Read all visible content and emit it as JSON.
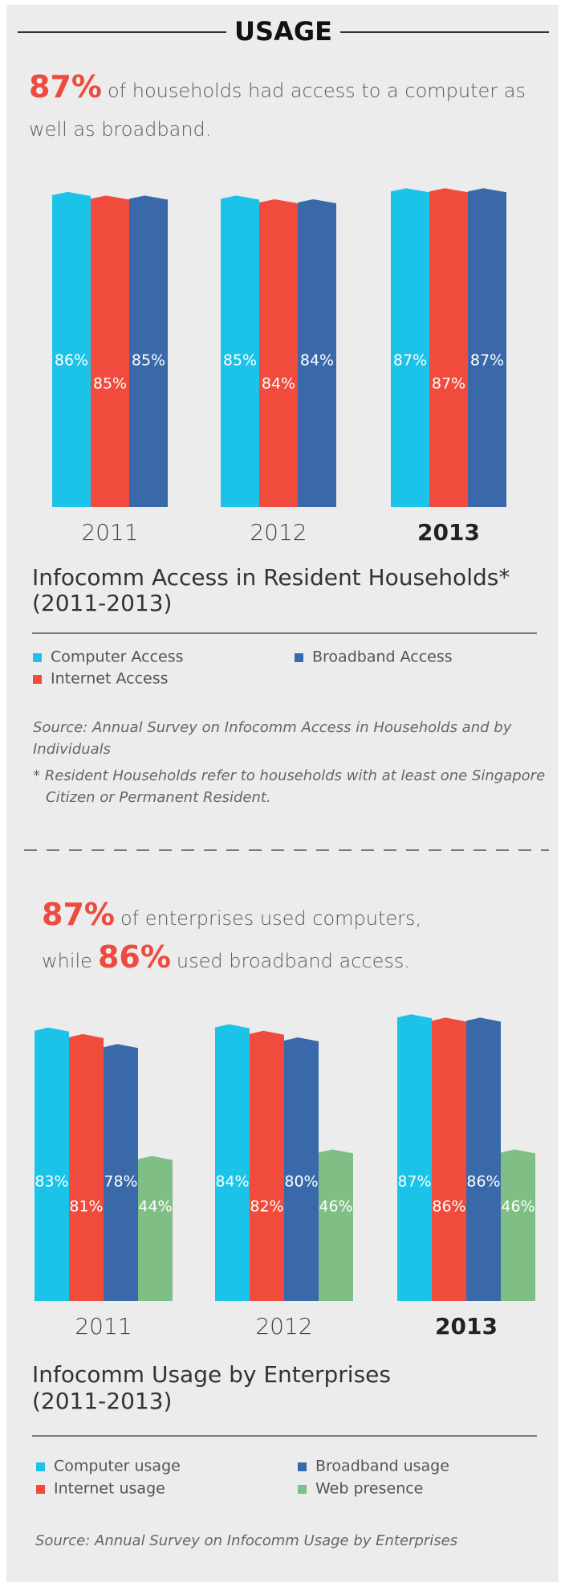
{
  "header": {
    "title": "USAGE"
  },
  "chart_data": [
    {
      "type": "bar",
      "headline": [
        {
          "text": "87%",
          "highlight": true
        },
        {
          "text": "of households had access to a computer as well as broadband."
        }
      ],
      "title": [
        "Infocomm Access in Resident Households*",
        "(2011-2013)"
      ],
      "categories": [
        "2011",
        "2012",
        "2013"
      ],
      "series": [
        {
          "name": "Computer Access",
          "color": "#1bc3e9",
          "values": [
            86,
            85,
            87
          ],
          "value_labels": [
            "86%",
            "85%",
            "87%"
          ]
        },
        {
          "name": "Internet Access",
          "color": "#f04b3d",
          "values": [
            85,
            84,
            87
          ],
          "value_labels": [
            "85%",
            "84%",
            "87%"
          ]
        },
        {
          "name": "Broadband Access",
          "color": "#3a69aa",
          "values": [
            85,
            84,
            87
          ],
          "value_labels": [
            "85%",
            "84%",
            "87%"
          ]
        }
      ],
      "source": "Source: Annual Survey on Infocomm Access in Households and by Individuals",
      "note": "* Resident Households refer to households with at least one Singapore Citizen or Permanent Resident."
    },
    {
      "type": "bar",
      "headline": [
        {
          "text": "87%",
          "highlight": true
        },
        {
          "text": "of enterprises used computers, while"
        },
        {
          "text": "86%",
          "highlight": true
        },
        {
          "text": "used broadband access."
        }
      ],
      "title": [
        "Infocomm Usage by Enterprises",
        "(2011-2013)"
      ],
      "categories": [
        "2011",
        "2012",
        "2013"
      ],
      "series": [
        {
          "name": "Computer usage",
          "color": "#1bc3e9",
          "values": [
            83,
            84,
            87
          ],
          "value_labels": [
            "83%",
            "84%",
            "87%"
          ]
        },
        {
          "name": "Internet usage",
          "color": "#f04b3d",
          "values": [
            81,
            82,
            86
          ],
          "value_labels": [
            "81%",
            "82%",
            "86%"
          ]
        },
        {
          "name": "Broadband usage",
          "color": "#3a69aa",
          "values": [
            78,
            80,
            86
          ],
          "value_labels": [
            "78%",
            "80%",
            "86%"
          ]
        },
        {
          "name": "Web presence",
          "color": "#7fbf86",
          "values": [
            44,
            46,
            46
          ],
          "value_labels": [
            "44%",
            "46%",
            "46%"
          ]
        }
      ],
      "source": "Source: Annual Survey on Infocomm Usage by Enterprises"
    }
  ]
}
